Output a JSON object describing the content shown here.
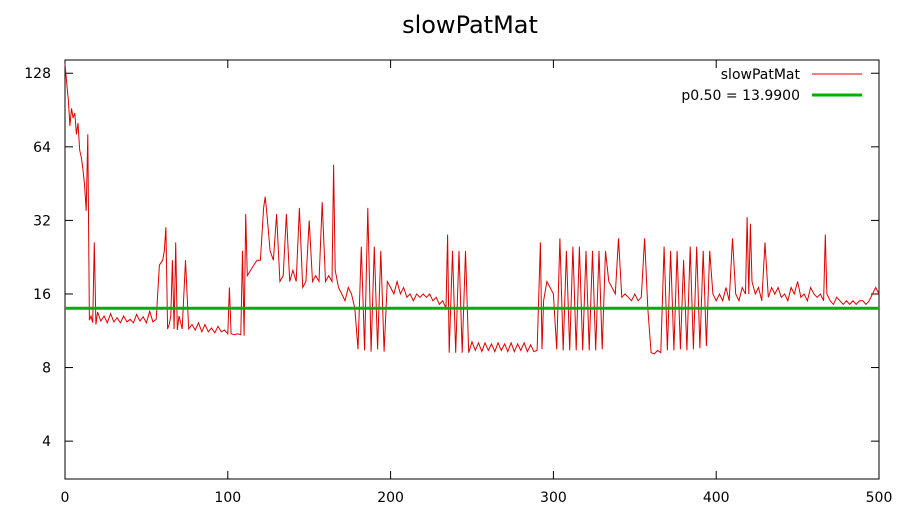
{
  "chart_data": {
    "type": "line",
    "title": "slowPatMat",
    "xlabel": "",
    "ylabel": "",
    "xlim": [
      0,
      500
    ],
    "ylim": [
      2.8,
      145
    ],
    "y_scale": "log2",
    "x_ticks": [
      0,
      100,
      200,
      300,
      400,
      500
    ],
    "y_ticks": [
      4,
      8,
      16,
      32,
      64,
      128
    ],
    "x_tick_labels": [
      "0",
      "100",
      "200",
      "300",
      "400",
      "500"
    ],
    "y_tick_labels": [
      "4",
      "8",
      "16",
      "32",
      "64",
      "128"
    ],
    "grid": false,
    "legend_position": "top-right",
    "series": [
      {
        "name": "slowPatMat",
        "color": "#dd0000",
        "points": [
          [
            0,
            140
          ],
          [
            1,
            118
          ],
          [
            2,
            100
          ],
          [
            3,
            78
          ],
          [
            4,
            92
          ],
          [
            5,
            84
          ],
          [
            6,
            88
          ],
          [
            7,
            72
          ],
          [
            8,
            80
          ],
          [
            9,
            62
          ],
          [
            10,
            58
          ],
          [
            11,
            52
          ],
          [
            12,
            45
          ],
          [
            13,
            35
          ],
          [
            14,
            72
          ],
          [
            15,
            12.5
          ],
          [
            16,
            13
          ],
          [
            17,
            12.2
          ],
          [
            18,
            26
          ],
          [
            19,
            12
          ],
          [
            20,
            13.5
          ],
          [
            22,
            12.4
          ],
          [
            24,
            13
          ],
          [
            26,
            12.2
          ],
          [
            28,
            13.3
          ],
          [
            30,
            12.3
          ],
          [
            32,
            12.8
          ],
          [
            34,
            12.2
          ],
          [
            36,
            13
          ],
          [
            38,
            12.3
          ],
          [
            40,
            12.6
          ],
          [
            42,
            12.2
          ],
          [
            44,
            13.2
          ],
          [
            46,
            12.4
          ],
          [
            48,
            12.9
          ],
          [
            50,
            12.2
          ],
          [
            52,
            13.6
          ],
          [
            54,
            12.3
          ],
          [
            56,
            12.6
          ],
          [
            58,
            21
          ],
          [
            60,
            22
          ],
          [
            61,
            24
          ],
          [
            62,
            30
          ],
          [
            63,
            11.5
          ],
          [
            64,
            12
          ],
          [
            65,
            13
          ],
          [
            66,
            22
          ],
          [
            67,
            11.5
          ],
          [
            68,
            26
          ],
          [
            69,
            11.4
          ],
          [
            70,
            13
          ],
          [
            72,
            11.5
          ],
          [
            74,
            22
          ],
          [
            76,
            11.5
          ],
          [
            78,
            12
          ],
          [
            80,
            11.4
          ],
          [
            82,
            12.2
          ],
          [
            84,
            11.2
          ],
          [
            86,
            12
          ],
          [
            88,
            11.2
          ],
          [
            90,
            11.6
          ],
          [
            92,
            11.1
          ],
          [
            94,
            11.8
          ],
          [
            96,
            11.2
          ],
          [
            98,
            11.4
          ],
          [
            100,
            11
          ],
          [
            101,
            17
          ],
          [
            102,
            11
          ],
          [
            104,
            10.9
          ],
          [
            106,
            11
          ],
          [
            108,
            10.9
          ],
          [
            109,
            24
          ],
          [
            110,
            10.8
          ],
          [
            111,
            34
          ],
          [
            112,
            19
          ],
          [
            114,
            20
          ],
          [
            116,
            21
          ],
          [
            118,
            22
          ],
          [
            120,
            22
          ],
          [
            122,
            36
          ],
          [
            123,
            40
          ],
          [
            124,
            34
          ],
          [
            126,
            24
          ],
          [
            128,
            22
          ],
          [
            130,
            34
          ],
          [
            132,
            18
          ],
          [
            134,
            19
          ],
          [
            136,
            34
          ],
          [
            138,
            18
          ],
          [
            140,
            20
          ],
          [
            142,
            18
          ],
          [
            144,
            36
          ],
          [
            146,
            17
          ],
          [
            148,
            18
          ],
          [
            150,
            32
          ],
          [
            152,
            18
          ],
          [
            154,
            19
          ],
          [
            156,
            18
          ],
          [
            158,
            38
          ],
          [
            160,
            18
          ],
          [
            162,
            19
          ],
          [
            164,
            18
          ],
          [
            165,
            54
          ],
          [
            166,
            20
          ],
          [
            168,
            17
          ],
          [
            170,
            16
          ],
          [
            172,
            15
          ],
          [
            174,
            17
          ],
          [
            176,
            16
          ],
          [
            178,
            14
          ],
          [
            180,
            9.5
          ],
          [
            182,
            25
          ],
          [
            184,
            9.4
          ],
          [
            186,
            36
          ],
          [
            188,
            9.3
          ],
          [
            190,
            25
          ],
          [
            192,
            9.5
          ],
          [
            194,
            24
          ],
          [
            196,
            9.3
          ],
          [
            198,
            18
          ],
          [
            200,
            17
          ],
          [
            202,
            16
          ],
          [
            204,
            18
          ],
          [
            206,
            16
          ],
          [
            208,
            17
          ],
          [
            210,
            15.5
          ],
          [
            212,
            16
          ],
          [
            214,
            15
          ],
          [
            216,
            16
          ],
          [
            218,
            15.5
          ],
          [
            220,
            16
          ],
          [
            222,
            15.5
          ],
          [
            224,
            16
          ],
          [
            226,
            15
          ],
          [
            228,
            15.5
          ],
          [
            230,
            14.5
          ],
          [
            232,
            15
          ],
          [
            234,
            14
          ],
          [
            235,
            28
          ],
          [
            236,
            9.2
          ],
          [
            238,
            24
          ],
          [
            240,
            9.2
          ],
          [
            242,
            24
          ],
          [
            244,
            9.2
          ],
          [
            246,
            24
          ],
          [
            248,
            9.2
          ],
          [
            250,
            10.2
          ],
          [
            252,
            9.4
          ],
          [
            254,
            10.1
          ],
          [
            256,
            9.3
          ],
          [
            258,
            10.1
          ],
          [
            260,
            9.4
          ],
          [
            262,
            10
          ],
          [
            264,
            9.3
          ],
          [
            266,
            10.1
          ],
          [
            268,
            9.4
          ],
          [
            270,
            10
          ],
          [
            272,
            9.3
          ],
          [
            274,
            10.1
          ],
          [
            276,
            9.3
          ],
          [
            278,
            10
          ],
          [
            280,
            9.4
          ],
          [
            282,
            10.1
          ],
          [
            284,
            9.3
          ],
          [
            286,
            9.9
          ],
          [
            288,
            9.3
          ],
          [
            290,
            9.4
          ],
          [
            292,
            26
          ],
          [
            293,
            9.5
          ],
          [
            294,
            15
          ],
          [
            296,
            18
          ],
          [
            298,
            17
          ],
          [
            300,
            16
          ],
          [
            302,
            9.5
          ],
          [
            304,
            27
          ],
          [
            306,
            9.4
          ],
          [
            308,
            24
          ],
          [
            310,
            9.4
          ],
          [
            312,
            25
          ],
          [
            314,
            9.4
          ],
          [
            316,
            25
          ],
          [
            318,
            9.4
          ],
          [
            320,
            24
          ],
          [
            322,
            9.4
          ],
          [
            324,
            24
          ],
          [
            326,
            9.4
          ],
          [
            328,
            24
          ],
          [
            330,
            9.5
          ],
          [
            332,
            24
          ],
          [
            334,
            18
          ],
          [
            336,
            17
          ],
          [
            338,
            16
          ],
          [
            340,
            27
          ],
          [
            342,
            15.5
          ],
          [
            344,
            16
          ],
          [
            346,
            15.5
          ],
          [
            348,
            15
          ],
          [
            350,
            16
          ],
          [
            352,
            15
          ],
          [
            354,
            15.5
          ],
          [
            356,
            27
          ],
          [
            358,
            14
          ],
          [
            360,
            9.2
          ],
          [
            362,
            9.1
          ],
          [
            364,
            9.4
          ],
          [
            366,
            9.2
          ],
          [
            368,
            25
          ],
          [
            370,
            9.4
          ],
          [
            372,
            24
          ],
          [
            374,
            9.4
          ],
          [
            376,
            24
          ],
          [
            378,
            9.5
          ],
          [
            380,
            22
          ],
          [
            382,
            9.4
          ],
          [
            384,
            25
          ],
          [
            386,
            9.5
          ],
          [
            388,
            25
          ],
          [
            390,
            9.6
          ],
          [
            392,
            24
          ],
          [
            394,
            9.8
          ],
          [
            396,
            24
          ],
          [
            398,
            16
          ],
          [
            400,
            15
          ],
          [
            402,
            16
          ],
          [
            404,
            15
          ],
          [
            406,
            17
          ],
          [
            408,
            15
          ],
          [
            410,
            27
          ],
          [
            412,
            16
          ],
          [
            414,
            15
          ],
          [
            416,
            17
          ],
          [
            418,
            16
          ],
          [
            419,
            33
          ],
          [
            420,
            16
          ],
          [
            421,
            31
          ],
          [
            422,
            18
          ],
          [
            424,
            16
          ],
          [
            426,
            17
          ],
          [
            428,
            15
          ],
          [
            430,
            26
          ],
          [
            432,
            15.5
          ],
          [
            434,
            17
          ],
          [
            436,
            16
          ],
          [
            438,
            17
          ],
          [
            440,
            15.5
          ],
          [
            442,
            16
          ],
          [
            444,
            15
          ],
          [
            446,
            17
          ],
          [
            448,
            16
          ],
          [
            450,
            18
          ],
          [
            452,
            15.5
          ],
          [
            454,
            16
          ],
          [
            456,
            15
          ],
          [
            458,
            17
          ],
          [
            460,
            16
          ],
          [
            462,
            15.5
          ],
          [
            464,
            16
          ],
          [
            466,
            15
          ],
          [
            467,
            28
          ],
          [
            468,
            16
          ],
          [
            470,
            15
          ],
          [
            472,
            14.5
          ],
          [
            474,
            15.5
          ],
          [
            476,
            15
          ],
          [
            478,
            14.5
          ],
          [
            480,
            15
          ],
          [
            482,
            14.5
          ],
          [
            484,
            15
          ],
          [
            486,
            14.5
          ],
          [
            488,
            15
          ],
          [
            490,
            15
          ],
          [
            492,
            14.5
          ],
          [
            494,
            15
          ],
          [
            496,
            16
          ],
          [
            498,
            17
          ],
          [
            500,
            16
          ]
        ]
      },
      {
        "name": "p0.50 = 13.9900",
        "color": "#00b000",
        "constant": 13.99
      }
    ]
  }
}
